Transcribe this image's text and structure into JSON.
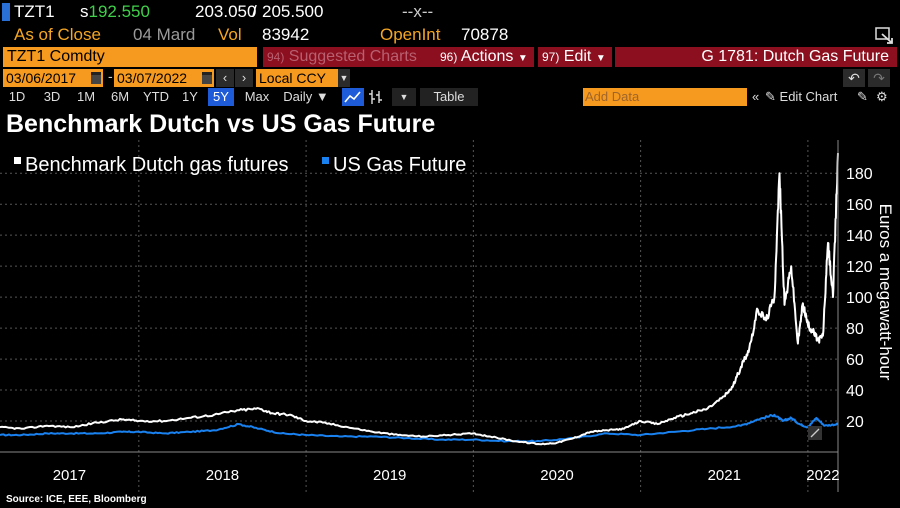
{
  "quote": {
    "ticker": "TZT1",
    "price_prefix": "s",
    "price": "192.550",
    "bid": "203.050",
    "bid_ask_sep": "/",
    "ask": "205.500",
    "change": "--x--"
  },
  "status": {
    "as_of_label": "As of Close",
    "as_of_date": "04 Mard",
    "vol_label": "Vol",
    "vol_value": "83942",
    "openint_label": "OpenInt",
    "openint_value": "70878"
  },
  "menu": {
    "security": "TZT1 Comdty",
    "suggested_num": "94)",
    "suggested_label": "Suggested Charts",
    "actions_num": "96)",
    "actions_label": "Actions",
    "edit_num": "97)",
    "edit_label": "Edit",
    "function_title": "G 1781: Dutch Gas Future"
  },
  "range": {
    "start_date": "03/06/2017",
    "dash": "-",
    "end_date": "03/07/2022",
    "currency": "Local CCY"
  },
  "toolbar": {
    "periods": [
      "1D",
      "3D",
      "1M",
      "6M",
      "YTD",
      "1Y",
      "5Y",
      "Max"
    ],
    "selected_period": "5Y",
    "frequency": "Daily",
    "table_label": "Table",
    "add_data_placeholder": "Add Data",
    "edit_chart_label": "Edit Chart"
  },
  "chart_title": "Benchmark Dutch vs US Gas Future",
  "source": "Source: ICE, EEE, Bloomberg",
  "colors": {
    "dutch_line": "#ffffff",
    "us_line": "#1a82f0",
    "accent_amber": "#f59a1e",
    "menu_red": "#8b0f1e",
    "price_green": "#3fd14a"
  },
  "chart_data": {
    "type": "line",
    "title": "Benchmark Dutch vs US Gas Future",
    "ylabel": "Euros a megawatt-hour",
    "ylim": [
      0,
      195
    ],
    "yticks": [
      20,
      40,
      60,
      80,
      100,
      120,
      140,
      160,
      180
    ],
    "x_range": [
      2017.17,
      2022.18
    ],
    "year_labels": [
      "2017",
      "2018",
      "2019",
      "2020",
      "2021",
      "2022"
    ],
    "legend": [
      "Benchmark Dutch gas futures",
      "US Gas Future"
    ],
    "series": [
      {
        "name": "Benchmark Dutch gas futures",
        "color": "#ffffff",
        "x": [
          2017.17,
          2017.3,
          2017.45,
          2017.6,
          2017.75,
          2017.9,
          2018.0,
          2018.15,
          2018.3,
          2018.45,
          2018.6,
          2018.72,
          2018.8,
          2018.9,
          2019.0,
          2019.1,
          2019.25,
          2019.4,
          2019.55,
          2019.7,
          2019.85,
          2020.0,
          2020.1,
          2020.25,
          2020.4,
          2020.5,
          2020.6,
          2020.7,
          2020.8,
          2020.9,
          2021.0,
          2021.1,
          2021.2,
          2021.3,
          2021.4,
          2021.5,
          2021.55,
          2021.6,
          2021.65,
          2021.7,
          2021.75,
          2021.8,
          2021.83,
          2021.86,
          2021.9,
          2021.94,
          2021.97,
          2022.0,
          2022.03,
          2022.06,
          2022.09,
          2022.12,
          2022.15,
          2022.18
        ],
        "values": [
          16,
          15,
          17,
          16,
          19,
          21,
          20,
          20,
          22,
          24,
          27,
          28,
          25,
          24,
          20,
          19,
          16,
          13,
          11,
          10,
          11,
          12,
          10,
          7,
          5,
          6,
          9,
          13,
          14,
          15,
          20,
          18,
          22,
          25,
          28,
          36,
          42,
          55,
          67,
          92,
          85,
          100,
          180,
          95,
          120,
          70,
          96,
          82,
          78,
          72,
          75,
          135,
          100,
          193
        ]
      },
      {
        "name": "US Gas Future",
        "color": "#1a82f0",
        "x": [
          2017.17,
          2017.3,
          2017.45,
          2017.6,
          2017.75,
          2017.9,
          2018.0,
          2018.15,
          2018.3,
          2018.45,
          2018.6,
          2018.72,
          2018.85,
          2019.0,
          2019.2,
          2019.4,
          2019.6,
          2019.8,
          2020.0,
          2020.2,
          2020.4,
          2020.6,
          2020.8,
          2021.0,
          2021.2,
          2021.4,
          2021.6,
          2021.7,
          2021.8,
          2021.85,
          2021.9,
          2021.95,
          2022.0,
          2022.05,
          2022.1,
          2022.18
        ],
        "values": [
          11,
          11,
          12,
          12,
          12,
          13,
          13,
          12,
          13,
          14,
          18,
          15,
          12,
          11,
          10,
          10,
          9,
          8,
          8,
          7,
          7,
          9,
          12,
          11,
          13,
          15,
          17,
          21,
          24,
          20,
          22,
          18,
          16,
          22,
          17,
          18
        ]
      }
    ]
  }
}
